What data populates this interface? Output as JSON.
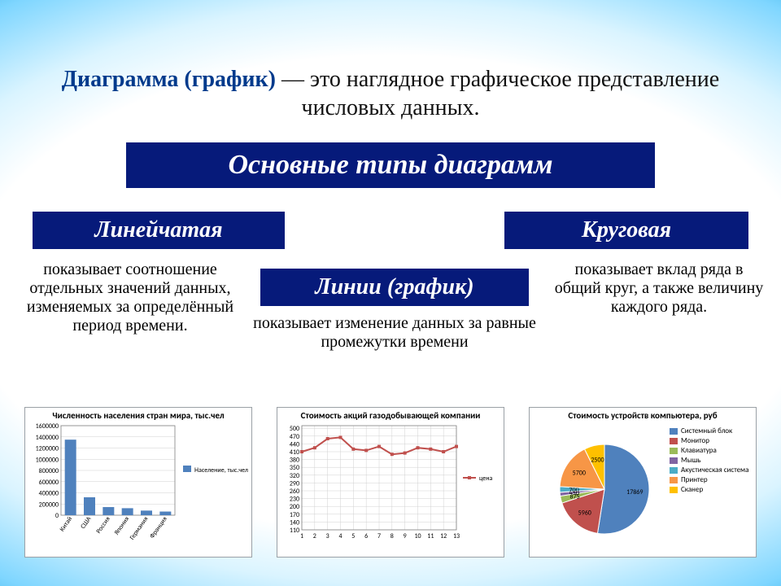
{
  "intro": {
    "term": "Диаграмма (график)",
    "rest": " — это наглядное графическое представление числовых данных."
  },
  "banners": {
    "main": "Основные типы диаграмм",
    "bar": "Линейчатая",
    "line": "Линии (график)",
    "pie": "Круговая"
  },
  "descs": {
    "bar": "показывает соотношение отдельных значений данных, изменяемых за определённый период времени.",
    "line": "показывает изменение данных за равные промежутки времени",
    "pie": "показывает вклад ряда в общий круг, а также величину каждого ряда."
  },
  "colors": {
    "banner_bg": "#061a7a",
    "banner_fg": "#ffffff",
    "term_fg": "#003a8c",
    "grid": "#d0d0d0",
    "axis": "#808080",
    "border": "#9aa0a6"
  },
  "bar_chart": {
    "title": "Численность населения стран мира, тыс.чел",
    "legend_label": "Население, тыс.чел",
    "bar_color": "#4f81bd",
    "categories": [
      "Китай",
      "США",
      "Россия",
      "Япония",
      "Германия",
      "Франция"
    ],
    "values": [
      1350000,
      320000,
      145000,
      125000,
      82000,
      65000
    ],
    "ylim": [
      0,
      1600000
    ],
    "ytick_step": 200000
  },
  "line_chart": {
    "title": "Стоимость акций газодобывающей компании",
    "legend_label": "цена",
    "line_color": "#c0504d",
    "x": [
      1,
      2,
      3,
      4,
      5,
      6,
      7,
      8,
      9,
      10,
      11,
      12,
      13
    ],
    "y": [
      410,
      425,
      460,
      465,
      420,
      415,
      430,
      400,
      405,
      425,
      420,
      410,
      430
    ],
    "ylim": [
      110,
      510
    ],
    "ytick_step": 30
  },
  "pie_chart": {
    "title": "Стоимость устройств компьютера, руб",
    "slices": [
      {
        "label": "Системный блок",
        "value": 17869,
        "color": "#4f81bd"
      },
      {
        "label": "Монитор",
        "value": 5960,
        "color": "#c0504d"
      },
      {
        "label": "Клавиатура",
        "value": 875,
        "color": "#9bbb59"
      },
      {
        "label": "Мышь",
        "value": 450,
        "color": "#8064a2"
      },
      {
        "label": "Акустическая система",
        "value": 700,
        "color": "#4bacc6"
      },
      {
        "label": "Принтер",
        "value": 5700,
        "color": "#f79646"
      },
      {
        "label": "Сканер",
        "value": 2500,
        "color": "#ffc000"
      }
    ],
    "data_labels": [
      "5700",
      "2500",
      "700",
      "450",
      "875",
      "5960",
      "17869"
    ]
  }
}
